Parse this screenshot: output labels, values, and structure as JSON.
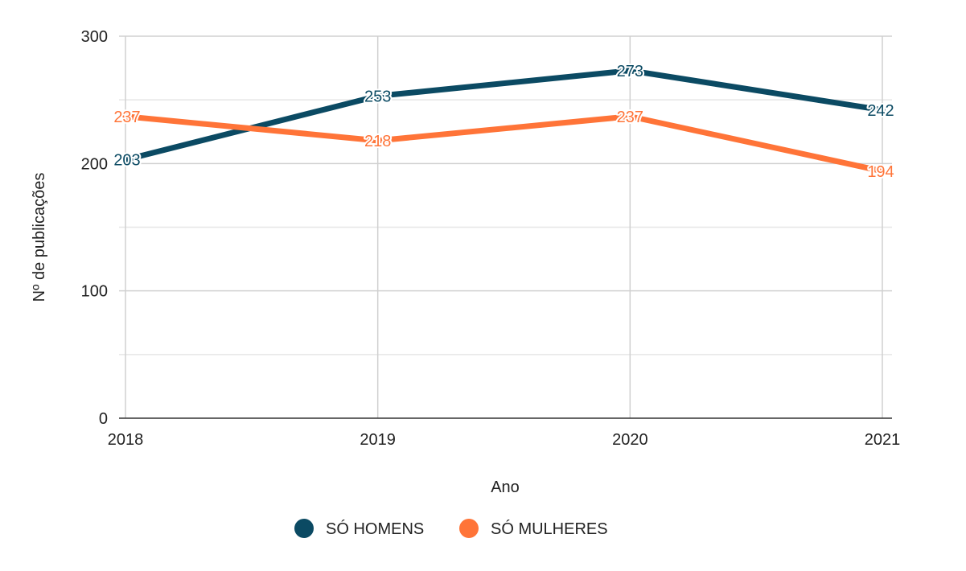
{
  "chart_data": {
    "type": "line",
    "x": [
      "2018",
      "2019",
      "2020",
      "2021"
    ],
    "xlabel": "Ano",
    "ylabel": "Nº de publicações",
    "ylim": [
      0,
      300
    ],
    "yticks": [
      "0",
      "100",
      "200",
      "300"
    ],
    "grid": true,
    "legend_position": "bottom",
    "series": [
      {
        "name": "SÓ HOMENS",
        "color": "#0b4a63",
        "values": [
          203,
          253,
          273,
          242
        ]
      },
      {
        "name": "SÓ MULHERES",
        "color": "#ff7438",
        "values": [
          237,
          218,
          237,
          194
        ]
      }
    ]
  }
}
